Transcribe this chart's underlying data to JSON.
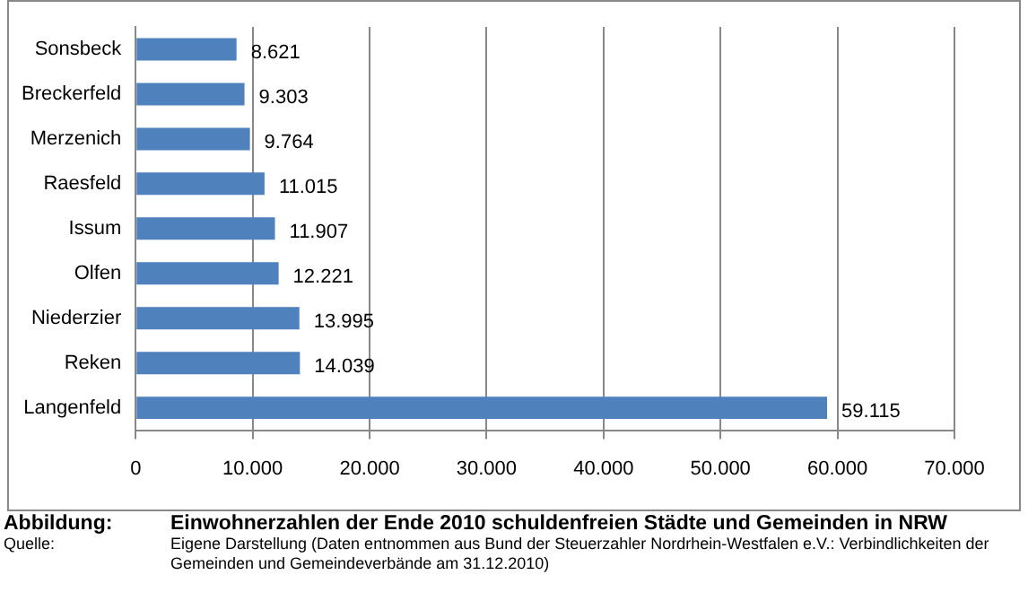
{
  "chart_data": {
    "type": "bar",
    "orientation": "horizontal",
    "title": "Einwohnerzahlen der Ende 2010 schuldenfreien Städte und Gemeinden in NRW",
    "categories": [
      "Sonsbeck",
      "Breckerfeld",
      "Merzenich",
      "Raesfeld",
      "Issum",
      "Olfen",
      "Niederzier",
      "Reken",
      "Langenfeld"
    ],
    "values": [
      8621,
      9303,
      9764,
      11015,
      11907,
      12221,
      13995,
      14039,
      59115
    ],
    "value_labels": [
      "8.621",
      "9.303",
      "9.764",
      "11.015",
      "11.907",
      "12.221",
      "13.995",
      "14.039",
      "59.115"
    ],
    "color": "#4f81bd",
    "xlim": [
      0,
      70000
    ],
    "xticks": [
      0,
      {
        "value": 10000,
        "label": "10.000"
      },
      {
        "value": 20000,
        "label": "20.000"
      },
      {
        "value": 30000,
        "label": "30.000"
      },
      {
        "value": 40000,
        "label": "40.000"
      },
      {
        "value": 50000,
        "label": "50.000"
      },
      {
        "value": 60000,
        "label": "60.000"
      },
      {
        "value": 70000,
        "label": "70.000"
      }
    ],
    "grid": "x",
    "annotations": [
      "Abbildung:",
      "Quelle:",
      "Eigene Darstellung (Daten entnommen aus Bund der Steuerzahler Nordrhein-Westfalen e.V.: Verbindlichkeiten der Gemeinden und Gemeindeverbände am 31.12.2010)"
    ]
  }
}
